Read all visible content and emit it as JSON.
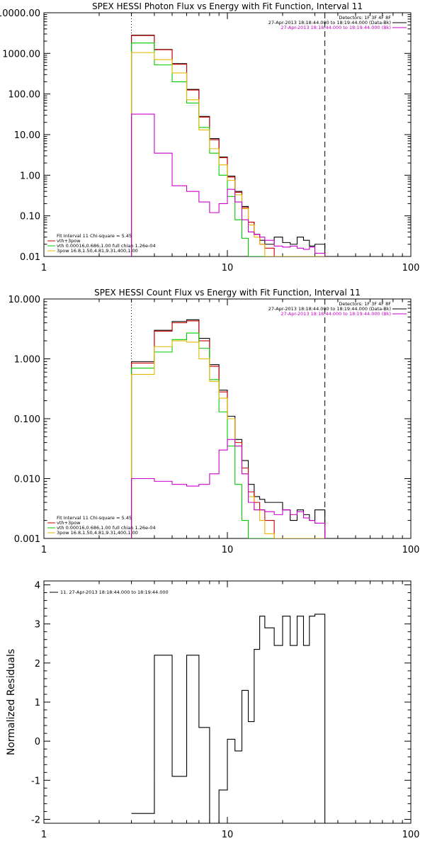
{
  "chart_data": [
    {
      "type": "line",
      "title": "SPEX HESSI Photon Flux vs Energy with Fit Function, Interval 11",
      "xscale": "log",
      "yscale": "log",
      "xlim": [
        1,
        100
      ],
      "ylim": [
        0.01,
        10000
      ],
      "xticks": [
        {
          "value": 1,
          "label": "1"
        },
        {
          "value": 10,
          "label": "10"
        },
        {
          "value": 100,
          "label": "100"
        }
      ],
      "yticks": [
        {
          "value": 10000,
          "label": "10000.00"
        },
        {
          "value": 1000,
          "label": "1000.00"
        },
        {
          "value": 100,
          "label": "100.00"
        },
        {
          "value": 10,
          "label": "10.00"
        },
        {
          "value": 1,
          "label": "1.00"
        },
        {
          "value": 0.1,
          "label": "0.10"
        },
        {
          "value": 0.01,
          "label": "0.01"
        }
      ],
      "vlines": [
        {
          "x": 3,
          "style": "dotted",
          "color": "#000000"
        },
        {
          "x": 34,
          "style": "dashed",
          "color": "#000000"
        }
      ],
      "legend_topright": [
        {
          "text": "Detectors: 1F 3F 4F 8F",
          "color": "#000000"
        },
        {
          "text": "27-Apr-2013 18:18:44.000 to 18:19:44.000 (Data-Bk)",
          "color": "#000000"
        },
        {
          "text": "27-Apr-2013 18:18:44.000 to 18:19:44.000 (Bk)",
          "color": "#cc00cc"
        }
      ],
      "legend_bottomleft": [
        {
          "text": "Fit Interval 11   Chi-square = 5.45",
          "color": "#000000"
        },
        {
          "text": "vth+3pow",
          "color": "#cc0000"
        },
        {
          "text": "vth 0.00016,0.686,1.00  full chian 1.26e-04",
          "color": "#00cc00"
        },
        {
          "text": "3pow 16.8,1.50,4.81,9.31,400,1.00",
          "color": "#e6b800"
        }
      ],
      "edges": [
        3,
        4,
        5,
        6,
        7,
        8,
        9,
        10,
        11,
        12,
        13,
        14,
        15,
        16,
        18,
        20,
        22,
        24,
        26,
        28,
        30,
        34
      ],
      "series": [
        {
          "name": "Data-Bk",
          "color": "#000000",
          "values": [
            2800,
            1250,
            560,
            130,
            28,
            8,
            2.8,
            0.95,
            0.4,
            0.17,
            0.07,
            0.035,
            0.025,
            0.02,
            0.03,
            0.022,
            0.02,
            0.03,
            0.025,
            0.018,
            0.02
          ]
        },
        {
          "name": "vth+3pow",
          "color": "#cc0000",
          "values": [
            2750,
            1230,
            540,
            125,
            27,
            7.5,
            2.7,
            0.9,
            0.38,
            0.16,
            0.07,
            0.035,
            0.02,
            0.016,
            0.01,
            0.01,
            0.01,
            0.01,
            0.01,
            0.01,
            0.01
          ]
        },
        {
          "name": "vth",
          "color": "#00cc00",
          "values": [
            1800,
            520,
            200,
            60,
            15,
            3.5,
            1.0,
            0.3,
            0.08,
            0.028,
            0.01,
            0.01,
            0.01,
            0.01,
            0.01,
            0.01,
            0.01,
            0.01,
            0.01,
            0.01,
            0.01
          ]
        },
        {
          "name": "3pow",
          "color": "#e6b800",
          "values": [
            1050,
            700,
            330,
            72,
            13,
            4.5,
            1.8,
            0.75,
            0.33,
            0.15,
            0.06,
            0.03,
            0.02,
            0.01,
            0.01,
            0.01,
            0.01,
            0.01,
            0.01,
            0.01,
            0.01
          ]
        },
        {
          "name": "Bk",
          "color": "#cc00cc",
          "values": [
            32,
            3.5,
            0.55,
            0.4,
            0.22,
            0.12,
            0.2,
            0.45,
            0.22,
            0.08,
            0.04,
            0.035,
            0.03,
            0.025,
            0.018,
            0.017,
            0.018,
            0.016,
            0.015,
            0.017,
            0.012
          ]
        }
      ]
    },
    {
      "type": "line",
      "title": "SPEX HESSI Count Flux vs Energy with Fit Function, Interval 11",
      "xscale": "log",
      "yscale": "log",
      "xlim": [
        1,
        100
      ],
      "ylim": [
        0.001,
        10
      ],
      "xticks": [
        {
          "value": 1,
          "label": "1"
        },
        {
          "value": 10,
          "label": "10"
        },
        {
          "value": 100,
          "label": "100"
        }
      ],
      "yticks": [
        {
          "value": 10,
          "label": "10.000"
        },
        {
          "value": 1,
          "label": "1.000"
        },
        {
          "value": 0.1,
          "label": "0.100"
        },
        {
          "value": 0.01,
          "label": "0.010"
        },
        {
          "value": 0.001,
          "label": "0.001"
        }
      ],
      "vlines": [
        {
          "x": 3,
          "style": "dotted",
          "color": "#000000"
        },
        {
          "x": 34,
          "style": "dashed",
          "color": "#000000"
        }
      ],
      "legend_topright": [
        {
          "text": "Detectors: 1F 3F 4F 8F",
          "color": "#000000"
        },
        {
          "text": "27-Apr-2013 18:18:44.000 to 18:19:44.000 (Data-Bk)",
          "color": "#000000"
        },
        {
          "text": "27-Apr-2013 18:18:44.000 to 18:19:44.000 (Bk)",
          "color": "#cc00cc"
        }
      ],
      "legend_bottomleft": [
        {
          "text": "Fit Interval 11   Chi-square = 5.45",
          "color": "#000000"
        },
        {
          "text": "vth+3pow",
          "color": "#cc0000"
        },
        {
          "text": "vth 0.00016,0.686,1.00  full chian 1.26e-04",
          "color": "#00cc00"
        },
        {
          "text": "3pow 16.8,1.50,4.81,9.31,400,1.00",
          "color": "#e6b800"
        }
      ],
      "edges": [
        3,
        4,
        5,
        6,
        7,
        8,
        9,
        10,
        11,
        12,
        13,
        14,
        15,
        16,
        18,
        20,
        22,
        24,
        26,
        28,
        30,
        34
      ],
      "series": [
        {
          "name": "Data-Bk",
          "color": "#000000",
          "values": [
            0.9,
            3.0,
            4.2,
            4.5,
            2.2,
            0.8,
            0.3,
            0.11,
            0.045,
            0.02,
            0.008,
            0.005,
            0.0045,
            0.004,
            0.004,
            0.003,
            0.002,
            0.003,
            0.0025,
            0.002,
            0.003
          ]
        },
        {
          "name": "vth+3pow",
          "color": "#cc0000",
          "values": [
            0.85,
            2.9,
            4.0,
            4.3,
            2.0,
            0.75,
            0.28,
            0.1,
            0.04,
            0.015,
            0.006,
            0.004,
            0.003,
            0.002,
            0.001,
            0.001,
            0.001,
            0.001,
            0.001,
            0.001,
            0.001
          ]
        },
        {
          "name": "vth",
          "color": "#00cc00",
          "values": [
            0.7,
            1.3,
            2.1,
            2.7,
            1.5,
            0.45,
            0.13,
            0.035,
            0.008,
            0.002,
            0.001,
            0.001,
            0.001,
            0.001,
            0.001,
            0.001,
            0.001,
            0.001,
            0.001,
            0.001,
            0.001
          ]
        },
        {
          "name": "3pow",
          "color": "#e6b800",
          "values": [
            0.55,
            1.6,
            2.0,
            1.9,
            1.0,
            0.42,
            0.22,
            0.1,
            0.035,
            0.012,
            0.005,
            0.003,
            0.002,
            0.0012,
            0.001,
            0.001,
            0.001,
            0.001,
            0.001,
            0.001,
            0.001
          ]
        },
        {
          "name": "Bk",
          "color": "#cc00cc",
          "values": [
            0.01,
            0.009,
            0.008,
            0.0075,
            0.008,
            0.012,
            0.03,
            0.045,
            0.035,
            0.012,
            0.004,
            0.003,
            0.003,
            0.0028,
            0.0025,
            0.003,
            0.0025,
            0.0028,
            0.0022,
            0.002,
            0.0018
          ]
        }
      ]
    },
    {
      "type": "line",
      "title": "",
      "ylabel": "Normalized Residuals",
      "xscale": "log",
      "yscale": "linear",
      "xlim": [
        1,
        100
      ],
      "ylim": [
        -2.1,
        4.1
      ],
      "xticks": [
        {
          "value": 1,
          "label": "1"
        },
        {
          "value": 10,
          "label": "10"
        },
        {
          "value": 100,
          "label": "100"
        }
      ],
      "yticks": [
        {
          "value": 4,
          "label": "4"
        },
        {
          "value": 3,
          "label": "3"
        },
        {
          "value": 2,
          "label": "2"
        },
        {
          "value": 1,
          "label": "1"
        },
        {
          "value": 0,
          "label": "0"
        },
        {
          "value": -1,
          "label": "-1"
        },
        {
          "value": -2,
          "label": "-2"
        }
      ],
      "legend_topleft": [
        {
          "text": "11. 27-Apr-2013 18:18:44.000 to 18:19:44.000",
          "color": "#000000"
        }
      ],
      "edges": [
        3,
        4,
        5,
        6,
        7,
        8,
        9,
        10,
        11,
        12,
        13,
        14,
        15,
        16,
        18,
        20,
        22,
        24,
        26,
        28,
        30,
        34
      ],
      "series": [
        {
          "name": "",
          "color": "#000000",
          "values": [
            -1.85,
            2.2,
            -0.9,
            2.2,
            0.35,
            -2.1,
            -1.25,
            0.05,
            -0.25,
            1.3,
            0.5,
            2.35,
            3.2,
            2.9,
            2.45,
            3.2,
            2.45,
            3.2,
            2.45,
            3.2,
            3.25
          ]
        }
      ]
    }
  ]
}
